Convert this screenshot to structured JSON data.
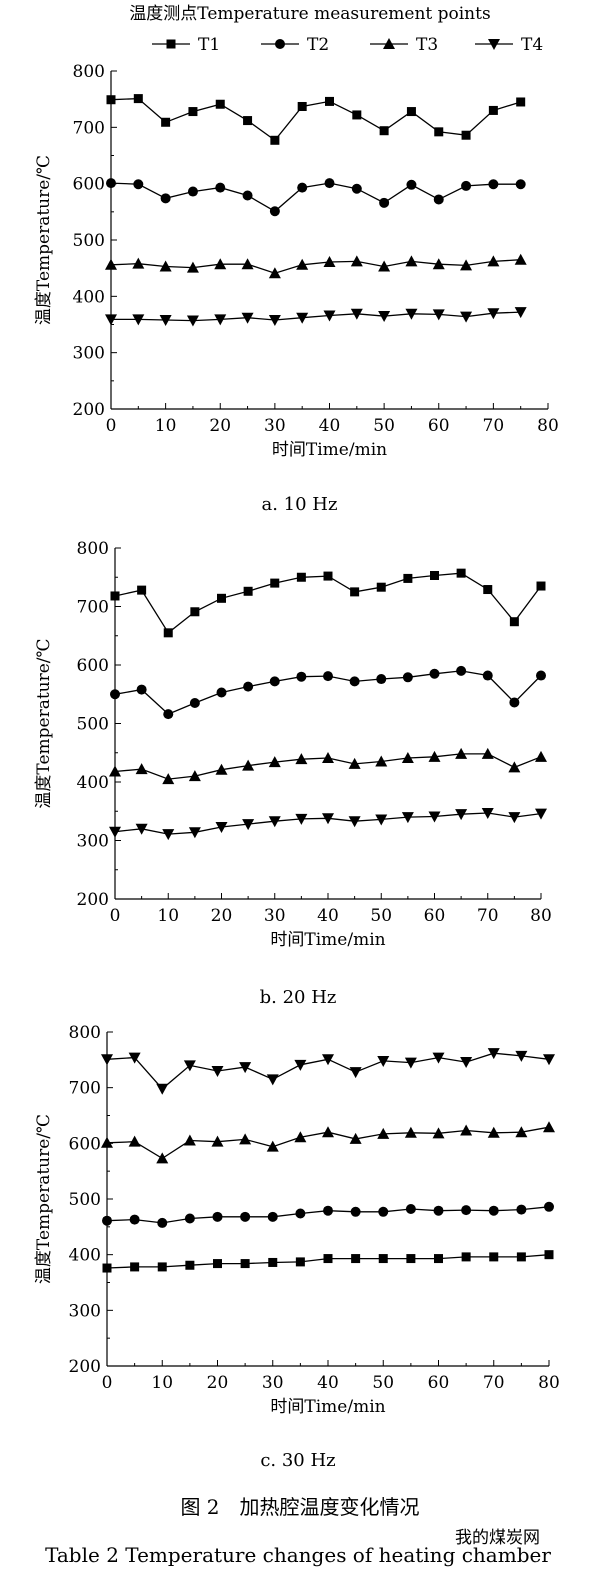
{
  "legend": {
    "title": "温度测点Temperature measurement points",
    "items": [
      "T1",
      "T2",
      "T3",
      "T4"
    ]
  },
  "caption_cn": "图 2　加热腔温度变化情况",
  "caption_en": "Table 2    Temperature changes of heating chamber",
  "watermark": "我的煤炭网",
  "chart_data": [
    {
      "type": "line",
      "caption": "a. 10 Hz",
      "xlabel": "时间Time/min",
      "ylabel": "温度Temperature/℃",
      "xlim": [
        0,
        80
      ],
      "ylim": [
        200,
        800
      ],
      "xticks": [
        0,
        10,
        20,
        30,
        40,
        50,
        60,
        70,
        80
      ],
      "yticks": [
        200,
        300,
        400,
        500,
        600,
        700,
        800
      ],
      "grid": false,
      "legend": "top",
      "x": [
        0,
        5,
        10,
        15,
        20,
        25,
        30,
        35,
        40,
        45,
        50,
        55,
        60,
        65,
        70,
        75
      ],
      "series": [
        {
          "name": "T1",
          "marker": "square",
          "values": [
            749,
            751,
            709,
            728,
            741,
            712,
            677,
            737,
            746,
            722,
            694,
            728,
            692,
            686,
            730,
            745
          ]
        },
        {
          "name": "T2",
          "marker": "circle",
          "values": [
            601,
            599,
            574,
            586,
            593,
            579,
            551,
            593,
            601,
            591,
            566,
            598,
            572,
            596,
            599,
            599
          ]
        },
        {
          "name": "T3",
          "marker": "triangle-up",
          "values": [
            456,
            458,
            453,
            451,
            457,
            457,
            441,
            456,
            461,
            462,
            453,
            462,
            457,
            455,
            462,
            465
          ]
        },
        {
          "name": "T4",
          "marker": "triangle-down",
          "values": [
            359,
            359,
            358,
            357,
            359,
            362,
            358,
            362,
            366,
            369,
            365,
            369,
            368,
            364,
            370,
            372
          ]
        }
      ]
    },
    {
      "type": "line",
      "caption": "b. 20 Hz",
      "xlabel": "时间Time/min",
      "ylabel": "温度Temperature/℃",
      "xlim": [
        0,
        80
      ],
      "ylim": [
        200,
        800
      ],
      "xticks": [
        0,
        10,
        20,
        30,
        40,
        50,
        60,
        70,
        80
      ],
      "yticks": [
        200,
        300,
        400,
        500,
        600,
        700,
        800
      ],
      "grid": false,
      "x": [
        0,
        5,
        10,
        15,
        20,
        25,
        30,
        35,
        40,
        45,
        50,
        55,
        60,
        65,
        70,
        75,
        80
      ],
      "series": [
        {
          "name": "T1",
          "marker": "square",
          "values": [
            718,
            728,
            655,
            691,
            714,
            726,
            740,
            750,
            752,
            725,
            733,
            748,
            753,
            757,
            729,
            674,
            735
          ]
        },
        {
          "name": "T2",
          "marker": "circle",
          "values": [
            550,
            558,
            516,
            535,
            553,
            563,
            572,
            580,
            581,
            572,
            576,
            579,
            585,
            590,
            582,
            536,
            582
          ]
        },
        {
          "name": "T3",
          "marker": "triangle-up",
          "values": [
            418,
            422,
            405,
            410,
            421,
            428,
            434,
            439,
            441,
            431,
            435,
            441,
            443,
            448,
            448,
            425,
            443
          ]
        },
        {
          "name": "T4",
          "marker": "triangle-down",
          "values": [
            315,
            320,
            311,
            314,
            323,
            328,
            333,
            337,
            338,
            333,
            336,
            340,
            341,
            345,
            347,
            340,
            346
          ]
        }
      ]
    },
    {
      "type": "line",
      "caption": "c. 30 Hz",
      "xlabel": "时间Time/min",
      "ylabel": "温度Temperature/℃",
      "xlim": [
        0,
        80
      ],
      "ylim": [
        200,
        800
      ],
      "xticks": [
        0,
        10,
        20,
        30,
        40,
        50,
        60,
        70,
        80
      ],
      "yticks": [
        200,
        300,
        400,
        500,
        600,
        700,
        800
      ],
      "grid": false,
      "x": [
        0,
        5,
        10,
        15,
        20,
        25,
        30,
        35,
        40,
        45,
        50,
        55,
        60,
        65,
        70,
        75,
        80
      ],
      "series": [
        {
          "name": "T1",
          "marker": "square",
          "values": [
            376,
            378,
            378,
            381,
            384,
            384,
            386,
            387,
            393,
            393,
            393,
            393,
            393,
            396,
            396,
            396,
            400
          ]
        },
        {
          "name": "T2",
          "marker": "circle",
          "values": [
            461,
            463,
            457,
            465,
            468,
            468,
            468,
            474,
            479,
            477,
            477,
            482,
            479,
            480,
            479,
            481,
            486
          ]
        },
        {
          "name": "T3",
          "marker": "triangle-up",
          "values": [
            601,
            603,
            573,
            605,
            603,
            607,
            594,
            611,
            620,
            608,
            617,
            619,
            618,
            623,
            619,
            620,
            629
          ]
        },
        {
          "name": "T4",
          "marker": "triangle-down",
          "values": [
            751,
            754,
            698,
            740,
            730,
            737,
            715,
            741,
            751,
            728,
            748,
            745,
            754,
            746,
            762,
            757,
            751
          ]
        }
      ]
    }
  ]
}
